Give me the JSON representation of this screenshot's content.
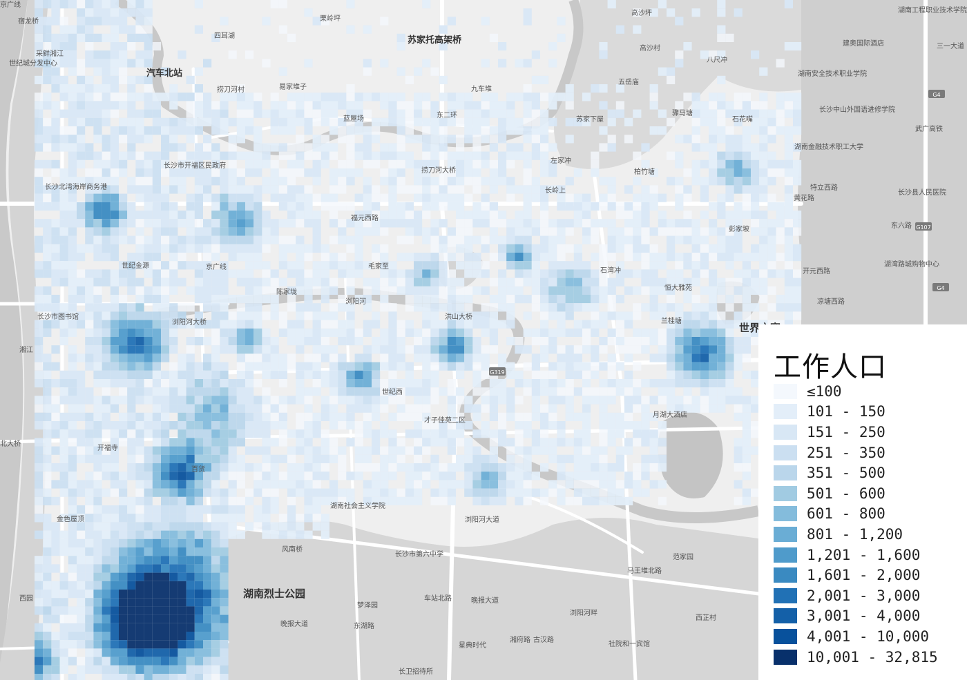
{
  "legend": {
    "title": "工作人口",
    "classes": [
      {
        "label": "≤100",
        "color": "#f4f8fd"
      },
      {
        "label": "101 - 150",
        "color": "#e3eef9"
      },
      {
        "label": "151 - 250",
        "color": "#d8e7f5"
      },
      {
        "label": "251 - 350",
        "color": "#cbdff1"
      },
      {
        "label": "351 - 500",
        "color": "#bad6eb"
      },
      {
        "label": "501 - 600",
        "color": "#a1cbe2"
      },
      {
        "label": "601 - 800",
        "color": "#84bcdc"
      },
      {
        "label": "801 - 1,200",
        "color": "#6aadd5"
      },
      {
        "label": "1,201 - 1,600",
        "color": "#4f9bcb"
      },
      {
        "label": "1,601 - 2,000",
        "color": "#3a8ac1"
      },
      {
        "label": "2,001 - 3,000",
        "color": "#2171b5"
      },
      {
        "label": "3,001 - 4,000",
        "color": "#1460a8"
      },
      {
        "label": "4,001 - 10,000",
        "color": "#08519c"
      },
      {
        "label": "10,001 - 32,815",
        "color": "#08306b"
      }
    ]
  },
  "map_labels": {
    "bold": [
      {
        "text": "汽车北站"
      },
      {
        "text": "苏家托高架桥"
      },
      {
        "text": "世界之窗"
      },
      {
        "text": "湖南烈士公园"
      }
    ],
    "normal": [
      {
        "text": "宿龙桥"
      },
      {
        "text": "四耳湖"
      },
      {
        "text": "栗岭坪"
      },
      {
        "text": "高沙坪"
      },
      {
        "text": "湖南工程职业技术学院"
      },
      {
        "text": "采鲜湘江"
      },
      {
        "text": "世纪城分发中心"
      },
      {
        "text": "建奥国际酒店"
      },
      {
        "text": "高沙村"
      },
      {
        "text": "八尺冲"
      },
      {
        "text": "捞刀河村"
      },
      {
        "text": "易家堆子"
      },
      {
        "text": "九车堆"
      },
      {
        "text": "五岳庙"
      },
      {
        "text": "湖南安全技术职业学院"
      },
      {
        "text": "蓝屋场"
      },
      {
        "text": "苏家下屋"
      },
      {
        "text": "骤马塘"
      },
      {
        "text": "石花嘴"
      },
      {
        "text": "长沙中山外国语进修学院"
      },
      {
        "text": "湖南金融技术职工大学"
      },
      {
        "text": "左家冲"
      },
      {
        "text": "长沙市开福区民政府"
      },
      {
        "text": "捞刀河大桥"
      },
      {
        "text": "柏竹塘"
      },
      {
        "text": "长岭上"
      },
      {
        "text": "特立西路"
      },
      {
        "text": "长沙县人民医院"
      },
      {
        "text": "长沙北湾海岸商务港"
      },
      {
        "text": "福元西路"
      },
      {
        "text": "彭家坡"
      },
      {
        "text": "世纪金源"
      },
      {
        "text": "毛家至"
      },
      {
        "text": "石湾冲"
      },
      {
        "text": "湖湾路城购物中心"
      },
      {
        "text": "开元西路"
      },
      {
        "text": "陈家垅"
      },
      {
        "text": "恒大雅苑"
      },
      {
        "text": "凉塘西路"
      },
      {
        "text": "长沙市图书馆"
      },
      {
        "text": "浏阳河"
      },
      {
        "text": "洪山大桥"
      },
      {
        "text": "兰桂塘"
      },
      {
        "text": "浏阳河大桥"
      },
      {
        "text": "才子佳苑二区"
      },
      {
        "text": "月湖大酒店"
      },
      {
        "text": "开福寺"
      },
      {
        "text": "北大桥"
      },
      {
        "text": "百货"
      },
      {
        "text": "金色屋顶"
      },
      {
        "text": "湖南社会主义学院"
      },
      {
        "text": "浏阳河大道"
      },
      {
        "text": "风南桥"
      },
      {
        "text": "长沙市第六中学"
      },
      {
        "text": "范家园"
      },
      {
        "text": "西园"
      },
      {
        "text": "梦泽园"
      },
      {
        "text": "晚报大道"
      },
      {
        "text": "西芷村"
      },
      {
        "text": "晚报大道"
      },
      {
        "text": "浏阳河畔"
      },
      {
        "text": "星典时代"
      },
      {
        "text": "古汉路"
      },
      {
        "text": "社院和一宾馆"
      },
      {
        "text": "长卫招待所"
      },
      {
        "text": "湘江"
      },
      {
        "text": "世纪西"
      },
      {
        "text": "东二环"
      },
      {
        "text": "京广线"
      },
      {
        "text": "三一大道"
      },
      {
        "text": "武广高铁"
      },
      {
        "text": "东六路"
      },
      {
        "text": "黄花路"
      },
      {
        "text": "湘府路"
      },
      {
        "text": "马王堆北路"
      },
      {
        "text": "东湖路"
      },
      {
        "text": "车站北路"
      },
      {
        "text": "京广线"
      }
    ]
  },
  "road_shields": [
    {
      "text": "G4"
    },
    {
      "text": "G4"
    },
    {
      "text": "G107"
    },
    {
      "text": "G319"
    }
  ]
}
